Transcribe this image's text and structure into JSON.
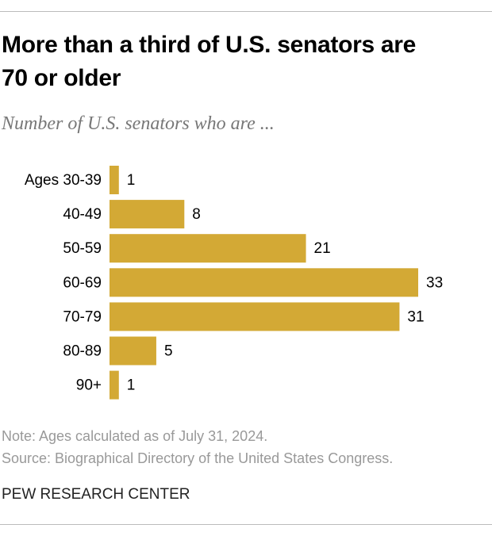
{
  "chart_data": {
    "type": "bar",
    "orientation": "horizontal",
    "title": "More than a third of U.S. senators are 70 or older",
    "subtitle": "Number of U.S. senators who are ...",
    "categories": [
      "Ages 30-39",
      "40-49",
      "50-59",
      "60-69",
      "70-79",
      "80-89",
      "90+"
    ],
    "values": [
      1,
      8,
      21,
      33,
      31,
      5,
      1
    ],
    "color": "#d3a935",
    "note": "Note: Ages calculated as of July 31, 2024.",
    "source": "Source: Biographical Directory of the United States Congress.",
    "credit": "PEW RESEARCH CENTER"
  }
}
